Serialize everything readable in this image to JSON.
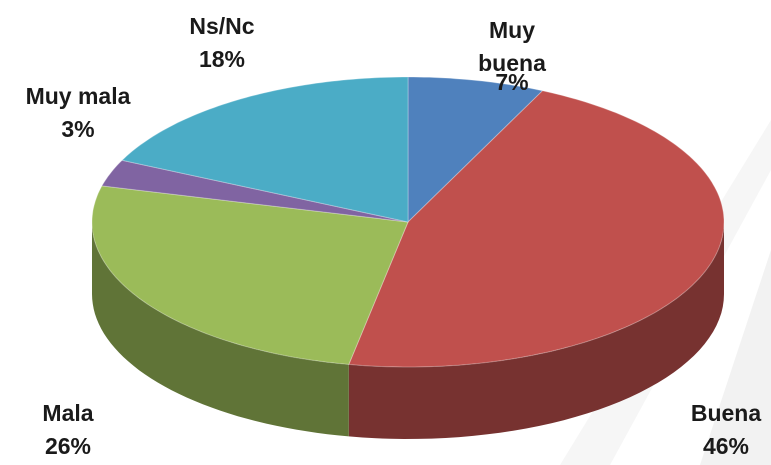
{
  "chart_data": {
    "type": "pie",
    "categories": [
      "Muy buena",
      "Buena",
      "Mala",
      "Muy mala",
      "Ns/Nc"
    ],
    "values": [
      7,
      46,
      26,
      3,
      18
    ],
    "value_labels": [
      "7%",
      "46%",
      "26%",
      "3%",
      "18%"
    ],
    "colors": [
      "#4f81bd",
      "#c0504d",
      "#9bbb59",
      "#8064a2",
      "#4bacc6"
    ]
  }
}
